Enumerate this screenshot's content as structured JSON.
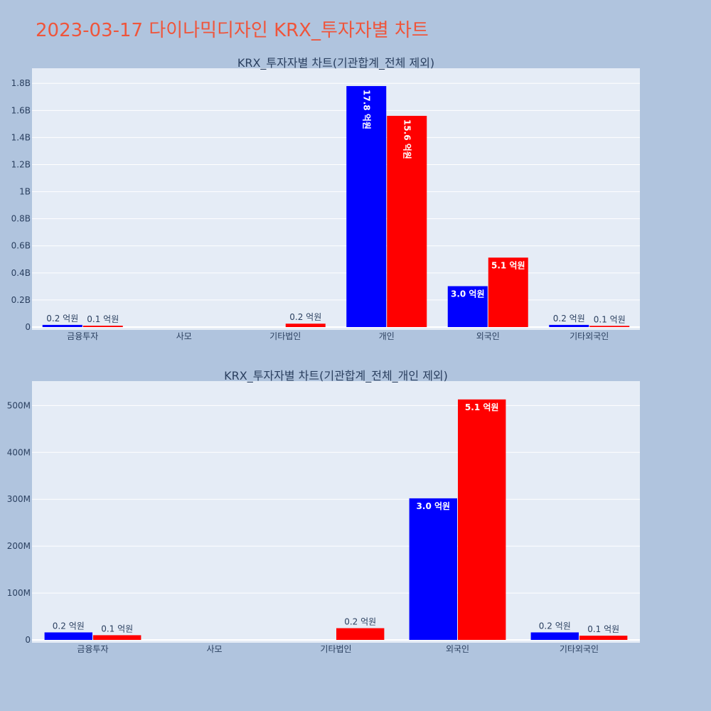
{
  "page": {
    "title": "2023-03-17 다이나믹디자인 KRX_투자자별 차트"
  },
  "colors": {
    "background": "#b0c4de",
    "plot_bg": "#e5ecf6",
    "title": "#ef553b",
    "series_a": "#0000ff",
    "series_b": "#ff0000"
  },
  "chart_data": [
    {
      "type": "bar",
      "title": "KRX_투자자별 차트(기관합계_전체 제외)",
      "categories": [
        "금융투자",
        "사모",
        "기타법인",
        "개인",
        "외국인",
        "기타외국인"
      ],
      "series": [
        {
          "color": "#0000ff",
          "values": [
            16000000,
            0,
            0,
            1780000000,
            302000000,
            16000000
          ],
          "labels": [
            "0.2 억원",
            "",
            "",
            "17.8 억원",
            "3.0 억원",
            "0.2 억원"
          ]
        },
        {
          "color": "#ff0000",
          "values": [
            10000000,
            0,
            25000000,
            1560000000,
            513000000,
            9000000
          ],
          "labels": [
            "0.1 억원",
            "",
            "0.2 억원",
            "15.6 억원",
            "5.1 억원",
            "0.1 억원"
          ]
        }
      ],
      "ylim": [
        0,
        1880000000
      ],
      "yticks": [
        {
          "value": 0,
          "label": "0"
        },
        {
          "value": 200000000,
          "label": "0.2B"
        },
        {
          "value": 400000000,
          "label": "0.4B"
        },
        {
          "value": 600000000,
          "label": "0.6B"
        },
        {
          "value": 800000000,
          "label": "0.8B"
        },
        {
          "value": 1000000000,
          "label": "1B"
        },
        {
          "value": 1200000000,
          "label": "1.2B"
        },
        {
          "value": 1400000000,
          "label": "1.4B"
        },
        {
          "value": 1600000000,
          "label": "1.6B"
        },
        {
          "value": 1800000000,
          "label": "1.8B"
        }
      ],
      "grid": true
    },
    {
      "type": "bar",
      "title": "KRX_투자자별 차트(기관합계_전체_개인 제외)",
      "categories": [
        "금융투자",
        "사모",
        "기타법인",
        "외국인",
        "기타외국인"
      ],
      "series": [
        {
          "color": "#0000ff",
          "values": [
            16000000,
            0,
            0,
            302000000,
            16000000
          ],
          "labels": [
            "0.2 억원",
            "",
            "",
            "3.0 억원",
            "0.2 억원"
          ]
        },
        {
          "color": "#ff0000",
          "values": [
            10000000,
            0,
            25000000,
            513000000,
            9000000
          ],
          "labels": [
            "0.1 억원",
            "",
            "0.2 억원",
            "5.1 억원",
            "0.1 억원"
          ]
        }
      ],
      "ylim": [
        0,
        543000000
      ],
      "yticks": [
        {
          "value": 0,
          "label": "0"
        },
        {
          "value": 100000000,
          "label": "100M"
        },
        {
          "value": 200000000,
          "label": "200M"
        },
        {
          "value": 300000000,
          "label": "300M"
        },
        {
          "value": 400000000,
          "label": "400M"
        },
        {
          "value": 500000000,
          "label": "500M"
        }
      ],
      "grid": true
    }
  ]
}
